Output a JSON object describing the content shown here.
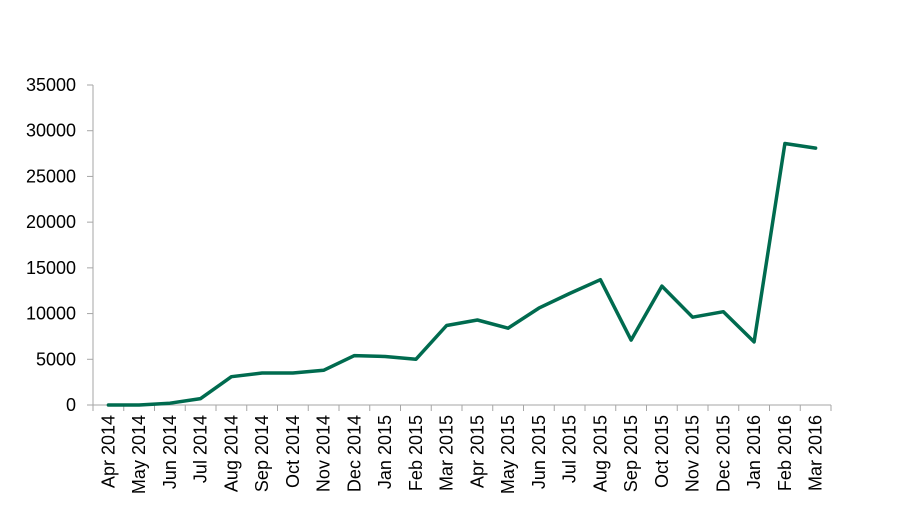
{
  "chart_data": {
    "type": "line",
    "title": "",
    "xlabel": "",
    "ylabel": "",
    "ylim": [
      0,
      35000
    ],
    "yticks": [
      0,
      5000,
      10000,
      15000,
      20000,
      25000,
      30000,
      35000
    ],
    "grid": false,
    "legend": "none",
    "categories": [
      "Apr 2014",
      "May 2014",
      "Jun 2014",
      "Jul 2014",
      "Aug 2014",
      "Sep 2014",
      "Oct 2014",
      "Nov 2014",
      "Dec 2014",
      "Jan 2015",
      "Feb 2015",
      "Mar 2015",
      "Apr 2015",
      "May 2015",
      "Jun 2015",
      "Jul 2015",
      "Aug 2015",
      "Sep 2015",
      "Oct 2015",
      "Nov 2015",
      "Dec 2015",
      "Jan 2016",
      "Feb 2016",
      "Mar 2016"
    ],
    "series": [
      {
        "color": "#006b4f",
        "values": [
          0,
          0,
          200,
          700,
          3100,
          3500,
          3500,
          3800,
          5400,
          5300,
          5000,
          8700,
          9300,
          8400,
          10600,
          12200,
          13700,
          7100,
          13000,
          9600,
          10200,
          6900,
          28600,
          28100
        ]
      }
    ]
  }
}
